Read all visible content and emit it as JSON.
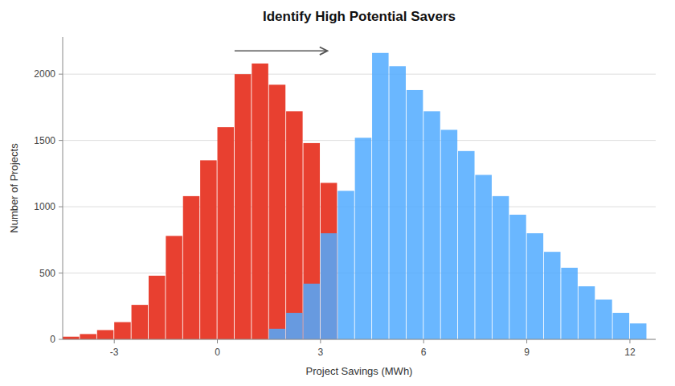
{
  "chart_data": {
    "type": "bar",
    "title": "Identify High Potential Savers",
    "xlabel": "Project Savings (MWh)",
    "ylabel": "Number of Projects",
    "xlim": [
      -4.5,
      12.75
    ],
    "ylim": [
      0,
      2280
    ],
    "xticks": [
      -3,
      0,
      3,
      6,
      9,
      12
    ],
    "yticks": [
      0,
      500,
      1000,
      1500,
      2000
    ],
    "grid": true,
    "series": [
      {
        "color": "#e84030",
        "x": [
          -4.5,
          -4.0,
          -3.5,
          -3.0,
          -2.5,
          -2.0,
          -1.5,
          -1.0,
          -0.5,
          0.0,
          0.5,
          1.0,
          1.5,
          2.0,
          2.5,
          3.0
        ],
        "values": [
          20,
          40,
          70,
          130,
          260,
          480,
          780,
          1080,
          1350,
          1600,
          2000,
          2080,
          1920,
          1720,
          1480,
          1180
        ]
      },
      {
        "color": "#50aaff",
        "x": [
          1.5,
          2.0,
          2.5,
          3.0,
          3.5,
          4.0,
          4.5,
          5.0,
          5.5,
          6.0,
          6.5,
          7.0,
          7.5,
          8.0,
          8.5,
          9.0,
          9.5,
          10.0,
          10.5,
          11.0,
          11.5,
          12.0
        ],
        "values": [
          80,
          200,
          420,
          800,
          1120,
          1520,
          2160,
          2060,
          1880,
          1720,
          1580,
          1420,
          1240,
          1080,
          940,
          800,
          660,
          540,
          400,
          300,
          200,
          120
        ]
      }
    ],
    "annotations": [
      {
        "x": 0.5,
        "x_end": 3.2,
        "y": 2175
      }
    ]
  }
}
